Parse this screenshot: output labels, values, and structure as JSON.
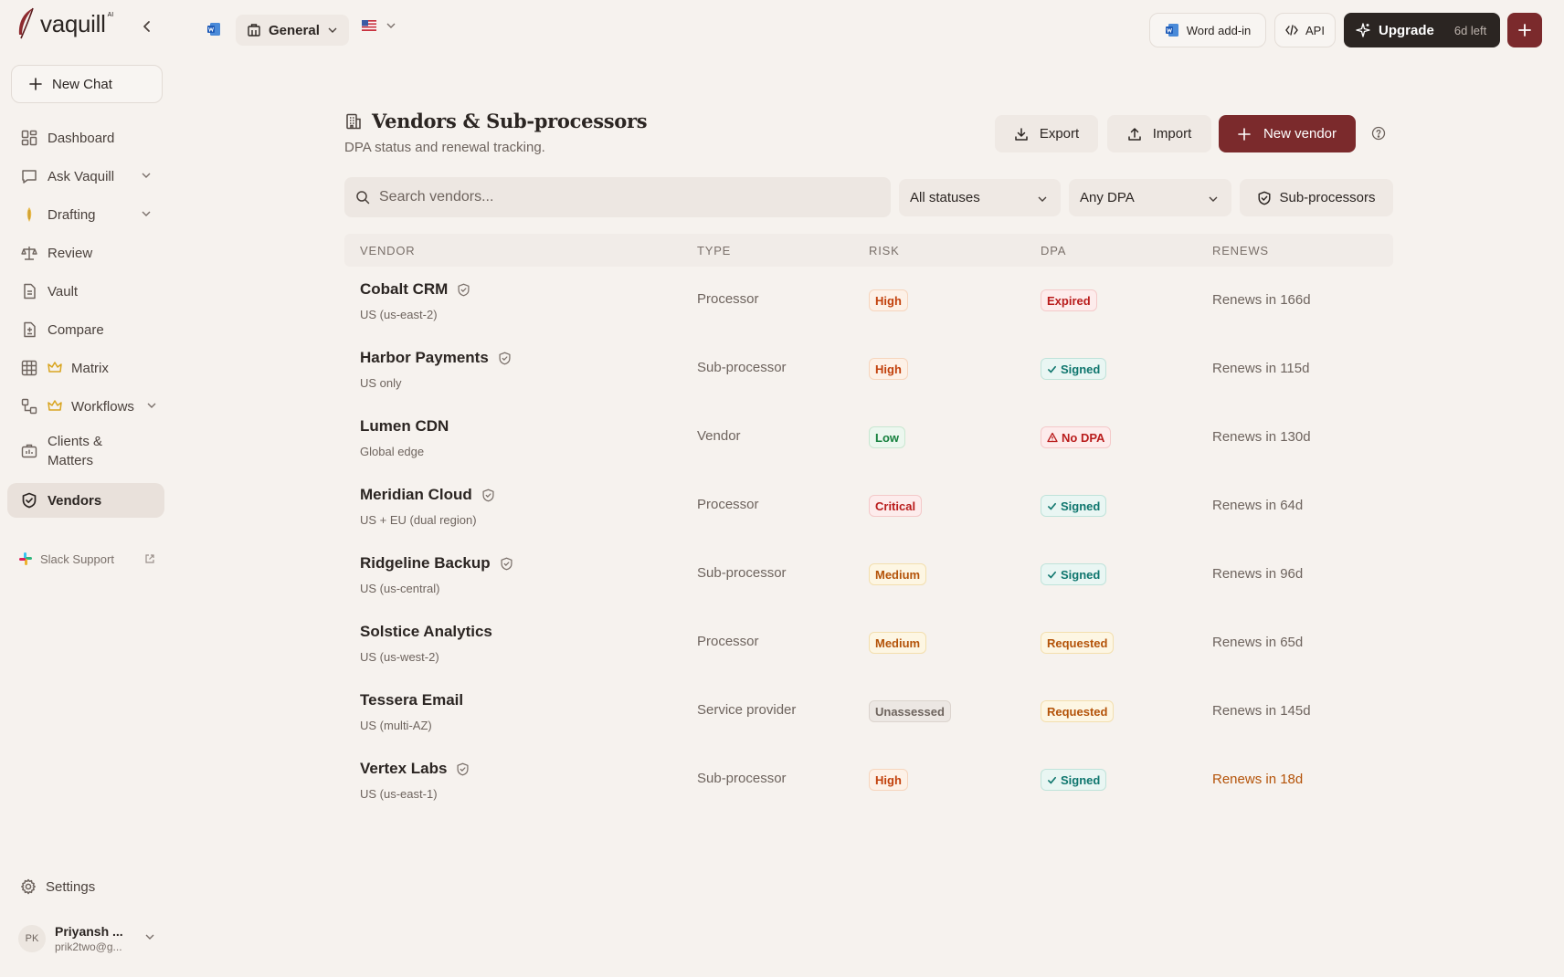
{
  "brand": {
    "name": "vaquill",
    "ai_tag": "AI"
  },
  "sidebar": {
    "new_chat": "New Chat",
    "items": [
      {
        "label": "Dashboard"
      },
      {
        "label": "Ask Vaquill"
      },
      {
        "label": "Drafting"
      },
      {
        "label": "Review"
      },
      {
        "label": "Vault"
      },
      {
        "label": "Compare"
      },
      {
        "label": "Matrix"
      },
      {
        "label": "Workflows"
      },
      {
        "label": "Clients &",
        "label2": "Matters"
      },
      {
        "label": "Vendors"
      }
    ],
    "slack": "Slack Support",
    "settings": "Settings",
    "user": {
      "initials": "PK",
      "name": "Priyansh ...",
      "email": "prik2two@g..."
    }
  },
  "topbar": {
    "workspace": "General",
    "word_addin": "Word add-in",
    "api": "API",
    "upgrade": "Upgrade",
    "days_left": "6d left"
  },
  "page": {
    "title": "Vendors & Sub-processors",
    "subtitle": "DPA status and renewal tracking.",
    "export": "Export",
    "import": "Import",
    "new_vendor": "New vendor"
  },
  "filters": {
    "search_placeholder": "Search vendors...",
    "status": "All statuses",
    "dpa": "Any DPA",
    "subprocessors": "Sub-processors"
  },
  "table": {
    "headers": {
      "vendor": "VENDOR",
      "type": "TYPE",
      "risk": "RISK",
      "dpa": "DPA",
      "renews": "RENEWS"
    },
    "rows": [
      {
        "name": "Cobalt CRM",
        "location": "US (us-east-2)",
        "type": "Processor",
        "risk": "High",
        "dpa": "Expired",
        "renews": "Renews in 166d"
      },
      {
        "name": "Harbor Payments",
        "location": "US only",
        "type": "Sub-processor",
        "risk": "High",
        "dpa": "Signed",
        "renews": "Renews in 115d"
      },
      {
        "name": "Lumen CDN",
        "location": "Global edge",
        "type": "Vendor",
        "risk": "Low",
        "dpa": "No DPA",
        "renews": "Renews in 130d"
      },
      {
        "name": "Meridian Cloud",
        "location": "US + EU (dual region)",
        "type": "Processor",
        "risk": "Critical",
        "dpa": "Signed",
        "renews": "Renews in 64d"
      },
      {
        "name": "Ridgeline Backup",
        "location": "US (us-central)",
        "type": "Sub-processor",
        "risk": "Medium",
        "dpa": "Signed",
        "renews": "Renews in 96d"
      },
      {
        "name": "Solstice Analytics",
        "location": "US (us-west-2)",
        "type": "Processor",
        "risk": "Medium",
        "dpa": "Requested",
        "renews": "Renews in 65d"
      },
      {
        "name": "Tessera Email",
        "location": "US (multi-AZ)",
        "type": "Service provider",
        "risk": "Unassessed",
        "dpa": "Requested",
        "renews": "Renews in 145d"
      },
      {
        "name": "Vertex Labs",
        "location": "US (us-east-1)",
        "type": "Sub-processor",
        "risk": "High",
        "dpa": "Signed",
        "renews": "Renews in 18d"
      }
    ]
  },
  "colors": {
    "accent": "#7b2a2c",
    "dark": "#2b2522",
    "risk_high": "#c2410c",
    "risk_critical": "#b91c1c",
    "risk_low": "#15803d",
    "risk_medium": "#b45309",
    "dpa_signed": "#0f766e",
    "dpa_expired": "#b91c1c",
    "dpa_requested": "#b45309",
    "renew_soon": "#b45309"
  }
}
